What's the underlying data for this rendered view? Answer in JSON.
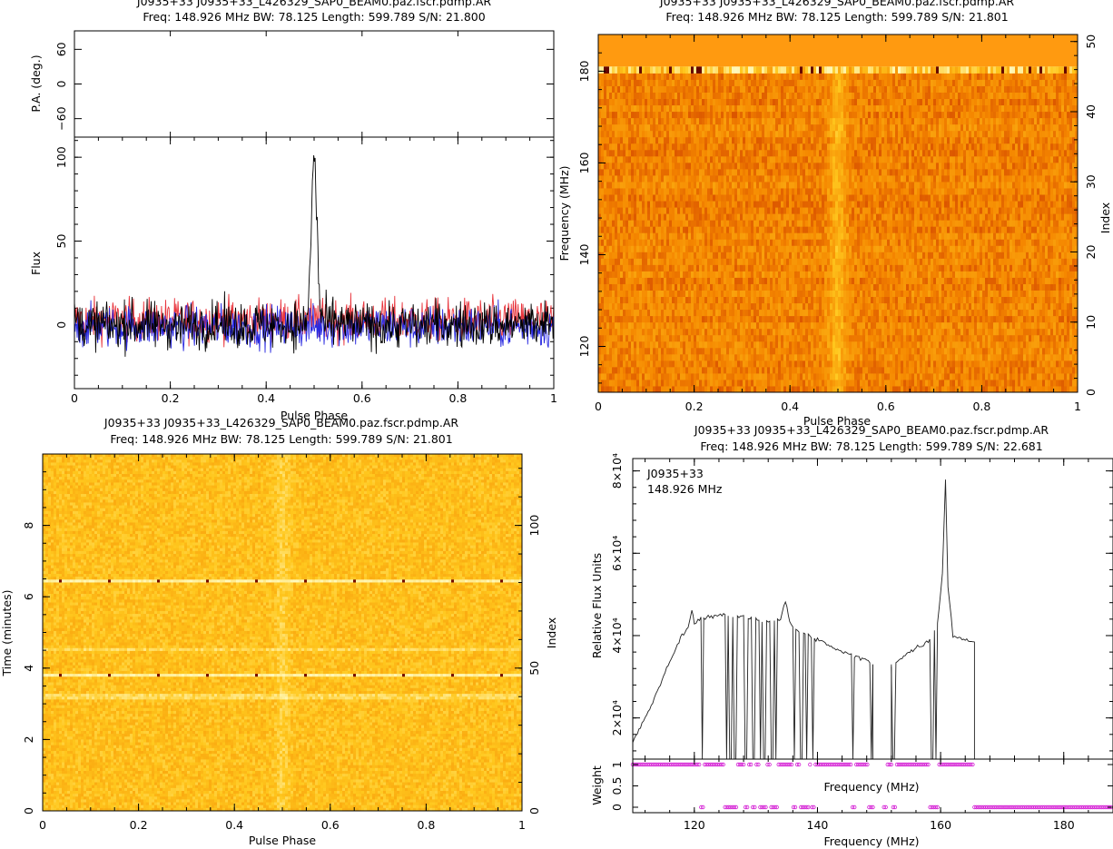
{
  "chart_data": [
    {
      "panel": "profile",
      "type": "line",
      "title": "J0935+33 J0935+33_L426329_SAP0_BEAM0.paz.fscr.pdmp.AR",
      "subtitle": "Freq: 148.926 MHz BW: 78.125 Length: 599.789 S/N: 21.800",
      "xlabel": "Pulse Phase",
      "ylabel": "Flux",
      "pa_ylabel": "P.A. (deg.)",
      "xlim": [
        0,
        1
      ],
      "ylim": [
        -38,
        112
      ],
      "pa_ylim": [
        -92,
        92
      ],
      "xticks": [
        "0",
        "0.2",
        "0.4",
        "0.6",
        "0.8",
        "1"
      ],
      "yticks": [
        "0",
        "50",
        "100"
      ],
      "pa_yticks": [
        "60",
        "0",
        "-60"
      ],
      "series_colors": [
        "#000000",
        "#e8333b",
        "#2a2ae0"
      ],
      "peak": {
        "x": 0.5,
        "y": 104
      },
      "noise_rms": 9
    },
    {
      "panel": "phase-frequency",
      "type": "heatmap",
      "title": "J0935+33 J0935+33_L426329_SAP0_BEAM0.paz.fscr.pdmp.AR",
      "subtitle": "Freq: 148.926 MHz BW: 78.125 Length: 599.789 S/N: 21.801",
      "xlabel": "Pulse Phase",
      "ylabel": "Frequency (MHz)",
      "y2label": "Index",
      "xlim": [
        0,
        1
      ],
      "ylim": [
        110,
        188
      ],
      "y2lim": [
        0,
        51
      ],
      "xticks": [
        "0",
        "0.2",
        "0.4",
        "0.6",
        "0.8",
        "1"
      ],
      "yticks": [
        "120",
        "140",
        "160",
        "180"
      ],
      "y2ticks": [
        "0",
        "10",
        "20",
        "30",
        "40",
        "50"
      ],
      "pulse_phase": 0.5,
      "bright_channel_mhz": 180,
      "flagged_above_mhz": 181
    },
    {
      "panel": "phase-time",
      "type": "heatmap",
      "title": "J0935+33 J0935+33_L426329_SAP0_BEAM0.paz.fscr.pdmp.AR",
      "subtitle": "Freq: 148.926 MHz BW: 78.125 Length: 599.789 S/N: 21.801",
      "xlabel": "Pulse Phase",
      "ylabel": "Time (minutes)",
      "y2label": "Index",
      "xlim": [
        0,
        1
      ],
      "ylim": [
        0,
        10
      ],
      "y2lim": [
        0,
        125
      ],
      "xticks": [
        "0",
        "0.2",
        "0.4",
        "0.6",
        "0.8",
        "1"
      ],
      "yticks": [
        "0",
        "2",
        "4",
        "6",
        "8"
      ],
      "y2ticks": [
        "0",
        "50",
        "100"
      ],
      "pulse_phase": 0.5,
      "bright_rows_minutes": [
        6.45,
        3.78
      ],
      "faint_rows_minutes": [
        4.5,
        3.2
      ]
    },
    {
      "panel": "bandpass",
      "type": "line",
      "title": "J0935+33 J0935+33_L426329_SAP0_BEAM0.paz.fscr.pdmp.AR",
      "subtitle": "Freq: 148.926 MHz BW: 78.125 Length: 599.789 S/N: 22.681",
      "annotation": [
        "J0935+33",
        "148.926 MHz"
      ],
      "xlabel": "Frequency (MHz)",
      "ylabel": "Relative Flux Units",
      "weight_label": "Weight",
      "weight_xlabel": "Frequency (MHz)",
      "xlim": [
        110,
        188
      ],
      "ylim": [
        10000,
        83000
      ],
      "xticks": [
        "120",
        "140",
        "160",
        "180"
      ],
      "yticks": [
        "2×10⁴",
        "4×10⁴",
        "6×10⁴",
        "8×10⁴"
      ],
      "weight_ticks": [
        "0",
        "0.5",
        "1"
      ],
      "weight_color": "#d41fd4",
      "bandpass": {
        "x": [
          110,
          111,
          113,
          115,
          117,
          118,
          119,
          119.6,
          120,
          120.6,
          122,
          124,
          126,
          128,
          130,
          132,
          134,
          134.8,
          135.5,
          137,
          140,
          142,
          144,
          146,
          148,
          149
        ],
        "y": [
          14000,
          17000,
          23000,
          30000,
          37000,
          40000,
          42000,
          46000,
          43000,
          44000,
          44500,
          45000,
          44800,
          44500,
          44000,
          43500,
          44000,
          48500,
          43000,
          41000,
          39000,
          37500,
          36000,
          35000,
          34000,
          33000
        ]
      },
      "bandpass2": {
        "x": [
          152,
          154,
          156,
          158,
          159.5,
          160.3,
          160.8,
          161.2,
          162,
          164,
          165.5
        ],
        "y": [
          33000,
          35000,
          37000,
          38500,
          43000,
          55000,
          78000,
          52000,
          40000,
          39000,
          38500
        ]
      },
      "dropouts_mhz": [
        121.3,
        125.2,
        125.9,
        126.6,
        128.4,
        129.6,
        130.8,
        131.4,
        132.6,
        133.2,
        136.2,
        137.4,
        138.2,
        139.3,
        145.8,
        148.7,
        151.0,
        152.4,
        158.6,
        159.3
      ]
    }
  ]
}
